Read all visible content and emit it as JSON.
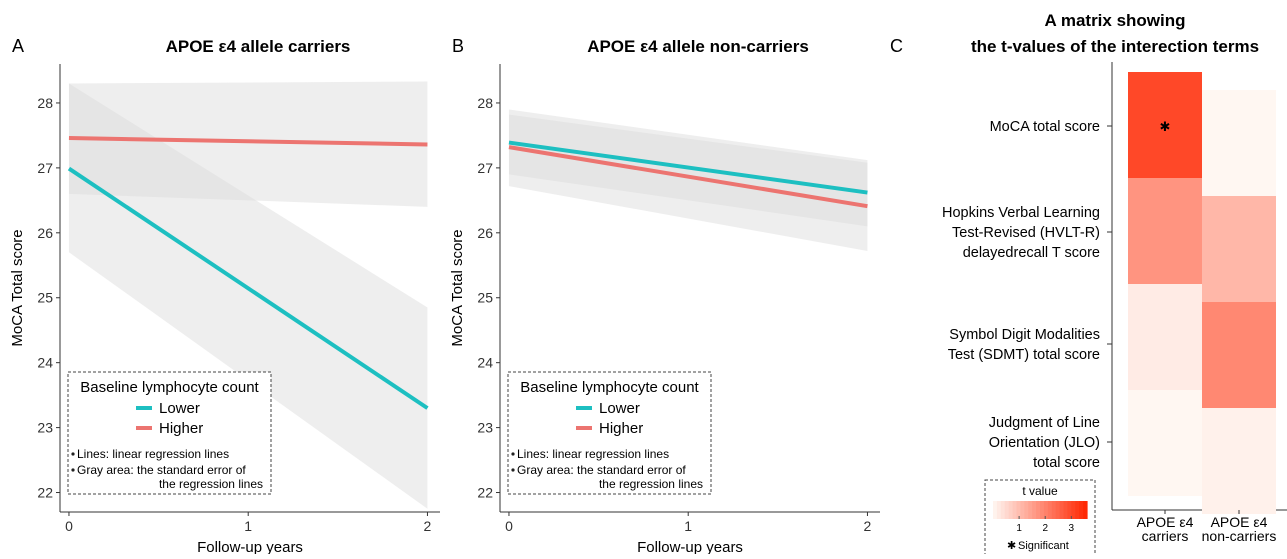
{
  "panel_labels": [
    "A",
    "B",
    "C"
  ],
  "legend": {
    "title": "Baseline lymphocyte count",
    "lower": "Lower",
    "higher": "Higher",
    "note_lines": "Lines: linear regression lines",
    "note_gray_1": "Gray area: the standard error of",
    "note_gray_2": "the regression lines"
  },
  "colors": {
    "lower": "#1dbfc1",
    "higher": "#ec7470",
    "band": "#d9d9d9"
  },
  "chart_data": [
    {
      "type": "line",
      "title": "APOE ε4 allele carriers",
      "xlabel": "Follow-up years",
      "ylabel": "MoCA Total score",
      "xlim": [
        -0.05,
        2.07
      ],
      "ylim": [
        21.7,
        28.6
      ],
      "xticks": [
        0,
        1,
        2
      ],
      "yticks": [
        22,
        23,
        24,
        25,
        26,
        27,
        28
      ],
      "series": [
        {
          "name": "Lower",
          "x": [
            0,
            2
          ],
          "y": [
            26.99,
            23.3
          ],
          "se_low": [
            25.7,
            21.75
          ],
          "se_high": [
            28.3,
            24.85
          ]
        },
        {
          "name": "Higher",
          "x": [
            0,
            2
          ],
          "y": [
            27.46,
            27.36
          ],
          "se_low": [
            26.6,
            26.4
          ],
          "se_high": [
            28.3,
            28.33
          ]
        }
      ]
    },
    {
      "type": "line",
      "title": "APOE ε4 allele non-carriers",
      "xlabel": "Follow-up years",
      "ylabel": "MoCA Total score",
      "xlim": [
        -0.05,
        2.07
      ],
      "ylim": [
        21.7,
        28.6
      ],
      "xticks": [
        0,
        1,
        2
      ],
      "yticks": [
        22,
        23,
        24,
        25,
        26,
        27,
        28
      ],
      "series": [
        {
          "name": "Lower",
          "x": [
            0,
            2
          ],
          "y": [
            27.39,
            26.62
          ],
          "se_low": [
            26.9,
            26.1
          ],
          "se_high": [
            27.9,
            27.12
          ]
        },
        {
          "name": "Higher",
          "x": [
            0,
            2
          ],
          "y": [
            27.32,
            26.41
          ],
          "se_low": [
            26.72,
            25.72
          ],
          "se_high": [
            27.82,
            27.08
          ]
        }
      ]
    },
    {
      "type": "heatmap",
      "title_line1": "A matrix showing",
      "title_line2": "the t-values of the interection terms",
      "rows": [
        [
          "MoCA total score"
        ],
        [
          "Hopkins Verbal Learning",
          "Test-Revised (HVLT-R)",
          "delayedrecall T score"
        ],
        [
          "Symbol Digit Modalities",
          "Test (SDMT) total score"
        ],
        [
          "Judgment of Line",
          "Orientation (JLO)",
          "total score"
        ]
      ],
      "columns": [
        [
          "APOE ε4",
          "carriers"
        ],
        [
          "APOE ε4",
          "non-carriers"
        ]
      ],
      "values": [
        [
          3.0,
          0.0
        ],
        [
          1.7,
          1.1
        ],
        [
          0.2,
          1.9
        ],
        [
          0.0,
          0.1
        ]
      ],
      "significant": [
        [
          true,
          false
        ],
        [
          false,
          false
        ],
        [
          false,
          false
        ],
        [
          false,
          false
        ]
      ],
      "colorbar": {
        "title": "t value",
        "ticks": [
          1,
          2,
          3
        ],
        "min": 0,
        "max": 3.6,
        "low_color": "#fff7f2",
        "high_color": "#ff2500"
      },
      "significance_label": "Significant",
      "significance_marker": "✱"
    }
  ]
}
